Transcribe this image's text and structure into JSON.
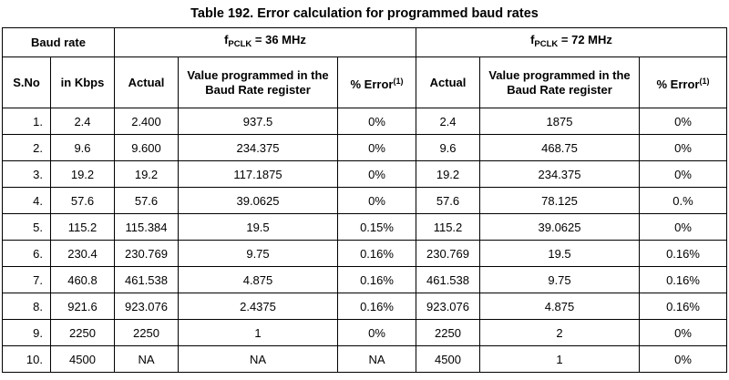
{
  "caption": "Table 192. Error calculation for programmed baud rates",
  "header": {
    "baud_rate": "Baud rate",
    "f_prefix": "f",
    "f_sub": "PCLK",
    "group36_value": " = 36 MHz",
    "group72_value": " = 72 MHz",
    "sno": "S.No",
    "in_kbps": "in Kbps",
    "actual": "Actual",
    "value_programmed": "Value programmed in the Baud Rate register",
    "pct_error": "% Error",
    "note_mark": "(1)"
  },
  "rows": [
    {
      "sno": "1.",
      "kbps": "2.4",
      "a36": "2.400",
      "v36": "937.5",
      "e36": "0%",
      "a72": "2.4",
      "v72": "1875",
      "e72": "0%"
    },
    {
      "sno": "2.",
      "kbps": "9.6",
      "a36": "9.600",
      "v36": "234.375",
      "e36": "0%",
      "a72": "9.6",
      "v72": "468.75",
      "e72": "0%"
    },
    {
      "sno": "3.",
      "kbps": "19.2",
      "a36": "19.2",
      "v36": "117.1875",
      "e36": "0%",
      "a72": "19.2",
      "v72": "234.375",
      "e72": "0%"
    },
    {
      "sno": "4.",
      "kbps": "57.6",
      "a36": "57.6",
      "v36": "39.0625",
      "e36": "0%",
      "a72": "57.6",
      "v72": "78.125",
      "e72": "0.%"
    },
    {
      "sno": "5.",
      "kbps": "115.2",
      "a36": "115.384",
      "v36": "19.5",
      "e36": "0.15%",
      "a72": "115.2",
      "v72": "39.0625",
      "e72": "0%"
    },
    {
      "sno": "6.",
      "kbps": "230.4",
      "a36": "230.769",
      "v36": "9.75",
      "e36": "0.16%",
      "a72": "230.769",
      "v72": "19.5",
      "e72": "0.16%"
    },
    {
      "sno": "7.",
      "kbps": "460.8",
      "a36": "461.538",
      "v36": "4.875",
      "e36": "0.16%",
      "a72": "461.538",
      "v72": "9.75",
      "e72": "0.16%"
    },
    {
      "sno": "8.",
      "kbps": "921.6",
      "a36": "923.076",
      "v36": "2.4375",
      "e36": "0.16%",
      "a72": "923.076",
      "v72": "4.875",
      "e72": "0.16%"
    },
    {
      "sno": "9.",
      "kbps": "2250",
      "a36": "2250",
      "v36": "1",
      "e36": "0%",
      "a72": "2250",
      "v72": "2",
      "e72": "0%"
    },
    {
      "sno": "10.",
      "kbps": "4500",
      "a36": "NA",
      "v36": "NA",
      "e36": "NA",
      "a72": "4500",
      "v72": "1",
      "e72": "0%"
    }
  ]
}
